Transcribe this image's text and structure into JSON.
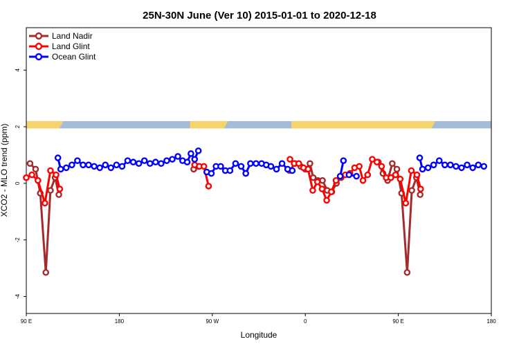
{
  "chart_data": {
    "type": "line",
    "title": "25N-30N June (Ver 10)   2015-01-01 to 2020-12-18",
    "xlabel": "Longitude",
    "ylabel": "XCO2 - MLO trend (ppm)",
    "xlim": [
      0,
      1
    ],
    "ylim": [
      -4.6,
      5.5
    ],
    "x_ticks": [
      {
        "pos": 0.0,
        "label": "90 E"
      },
      {
        "pos": 0.2,
        "label": "180"
      },
      {
        "pos": 0.4,
        "label": "90 W"
      },
      {
        "pos": 0.6,
        "label": "0"
      },
      {
        "pos": 0.8,
        "label": "90 E"
      },
      {
        "pos": 1.0,
        "label": "180"
      }
    ],
    "y_ticks": [
      {
        "value": -4,
        "label": "-4"
      },
      {
        "value": -2,
        "label": "-2"
      },
      {
        "value": 0,
        "label": "0"
      },
      {
        "value": 2,
        "label": "2"
      },
      {
        "value": 4,
        "label": "4"
      }
    ],
    "map_strip": {
      "y_bottom": 1.94,
      "y_top": 2.2,
      "ocean_color": "#a5bcd9",
      "land_color": "#f5d46e",
      "land_ranges": [
        [
          0.0,
          0.074
        ],
        [
          0.352,
          0.428
        ],
        [
          0.57,
          0.874
        ]
      ]
    },
    "legend": {
      "position": "top-left",
      "entries": [
        {
          "label": "Land Nadir",
          "color": "#a52a2a"
        },
        {
          "label": "Land Glint",
          "color": "#ff0000"
        },
        {
          "label": "Ocean Glint",
          "color": "#0000ff"
        }
      ]
    },
    "series": [
      {
        "name": "Land Nadir",
        "color": "#a52a2a",
        "segments": [
          [
            [
              0.008,
              0.7
            ],
            [
              0.02,
              0.5
            ],
            [
              0.03,
              -0.35
            ],
            [
              0.042,
              -3.15
            ],
            [
              0.052,
              -0.25
            ],
            [
              0.062,
              0.2
            ],
            [
              0.07,
              -0.4
            ]
          ],
          [
            [
              0.36,
              0.5
            ],
            [
              0.37,
              0.6
            ]
          ],
          [
            [
              0.566,
              0.45
            ],
            [
              0.578,
              0.7
            ],
            [
              0.59,
              0.6
            ],
            [
              0.6,
              0.5
            ],
            [
              0.61,
              0.7
            ],
            [
              0.617,
              0.2
            ],
            [
              0.627,
              0.1
            ],
            [
              0.637,
              0.1
            ],
            [
              0.647,
              -0.25
            ],
            [
              0.657,
              -0.3
            ],
            [
              0.667,
              0.0
            ],
            [
              0.677,
              0.2
            ]
          ],
          [
            [
              0.757,
              0.75
            ],
            [
              0.767,
              0.35
            ],
            [
              0.777,
              0.1
            ],
            [
              0.787,
              0.7
            ],
            [
              0.797,
              0.5
            ],
            [
              0.807,
              -0.35
            ],
            [
              0.819,
              -3.15
            ],
            [
              0.829,
              -0.25
            ],
            [
              0.839,
              0.2
            ],
            [
              0.847,
              -0.4
            ]
          ]
        ]
      },
      {
        "name": "Land Glint",
        "color": "#ff0000",
        "segments": [
          [
            [
              0.0,
              0.2
            ],
            [
              0.012,
              0.3
            ],
            [
              0.025,
              0.1
            ],
            [
              0.04,
              -0.7
            ],
            [
              0.052,
              0.45
            ],
            [
              0.064,
              0.3
            ],
            [
              0.072,
              -0.2
            ]
          ],
          [
            [
              0.362,
              0.65
            ],
            [
              0.372,
              0.6
            ],
            [
              0.382,
              0.6
            ],
            [
              0.392,
              -0.1
            ]
          ],
          [
            [
              0.567,
              0.85
            ],
            [
              0.576,
              0.7
            ],
            [
              0.586,
              0.7
            ],
            [
              0.596,
              0.55
            ],
            [
              0.606,
              0.5
            ],
            [
              0.616,
              -0.25
            ],
            [
              0.626,
              0.05
            ],
            [
              0.636,
              -0.2
            ],
            [
              0.646,
              -0.6
            ],
            [
              0.656,
              -0.3
            ],
            [
              0.666,
              0.1
            ],
            [
              0.676,
              0.25
            ],
            [
              0.686,
              0.3
            ],
            [
              0.696,
              0.35
            ],
            [
              0.706,
              0.55
            ],
            [
              0.716,
              0.6
            ],
            [
              0.724,
              0.1
            ],
            [
              0.734,
              0.3
            ],
            [
              0.744,
              0.85
            ],
            [
              0.754,
              0.75
            ],
            [
              0.764,
              0.6
            ],
            [
              0.774,
              0.2
            ],
            [
              0.784,
              0.2
            ],
            [
              0.794,
              0.3
            ],
            [
              0.804,
              0.15
            ],
            [
              0.816,
              -0.7
            ],
            [
              0.828,
              0.45
            ],
            [
              0.84,
              0.3
            ],
            [
              0.848,
              -0.2
            ]
          ]
        ]
      },
      {
        "name": "Ocean Glint",
        "color": "#0000ff",
        "segments": [
          [
            [
              0.068,
              0.9
            ],
            [
              0.074,
              0.5
            ],
            [
              0.086,
              0.55
            ],
            [
              0.098,
              0.65
            ],
            [
              0.11,
              0.8
            ],
            [
              0.122,
              0.65
            ],
            [
              0.134,
              0.65
            ],
            [
              0.146,
              0.6
            ],
            [
              0.158,
              0.55
            ],
            [
              0.17,
              0.65
            ],
            [
              0.182,
              0.55
            ],
            [
              0.194,
              0.65
            ],
            [
              0.206,
              0.6
            ],
            [
              0.218,
              0.8
            ],
            [
              0.23,
              0.75
            ],
            [
              0.242,
              0.7
            ],
            [
              0.254,
              0.8
            ],
            [
              0.266,
              0.7
            ],
            [
              0.278,
              0.75
            ],
            [
              0.29,
              0.7
            ],
            [
              0.302,
              0.8
            ],
            [
              0.314,
              0.85
            ],
            [
              0.326,
              0.95
            ],
            [
              0.336,
              0.8
            ],
            [
              0.346,
              0.75
            ],
            [
              0.354,
              1.05
            ],
            [
              0.362,
              0.85
            ],
            [
              0.37,
              1.15
            ]
          ],
          [
            [
              0.388,
              0.4
            ],
            [
              0.398,
              0.35
            ],
            [
              0.408,
              0.6
            ],
            [
              0.418,
              0.6
            ],
            [
              0.428,
              0.45
            ],
            [
              0.438,
              0.45
            ],
            [
              0.45,
              0.7
            ],
            [
              0.462,
              0.6
            ],
            [
              0.472,
              0.35
            ],
            [
              0.482,
              0.7
            ],
            [
              0.494,
              0.7
            ],
            [
              0.506,
              0.7
            ],
            [
              0.516,
              0.65
            ],
            [
              0.526,
              0.6
            ],
            [
              0.538,
              0.5
            ],
            [
              0.55,
              0.7
            ],
            [
              0.562,
              0.5
            ],
            [
              0.572,
              0.45
            ]
          ],
          [
            [
              0.675,
              0.25
            ],
            [
              0.682,
              0.8
            ]
          ],
          [
            [
              0.694,
              0.3
            ],
            [
              0.71,
              0.25
            ]
          ],
          [
            [
              0.846,
              0.9
            ],
            [
              0.852,
              0.5
            ],
            [
              0.864,
              0.55
            ],
            [
              0.876,
              0.65
            ],
            [
              0.888,
              0.8
            ],
            [
              0.9,
              0.65
            ],
            [
              0.912,
              0.65
            ],
            [
              0.924,
              0.6
            ],
            [
              0.936,
              0.55
            ],
            [
              0.948,
              0.65
            ],
            [
              0.96,
              0.55
            ],
            [
              0.972,
              0.65
            ],
            [
              0.984,
              0.6
            ]
          ]
        ]
      }
    ]
  }
}
